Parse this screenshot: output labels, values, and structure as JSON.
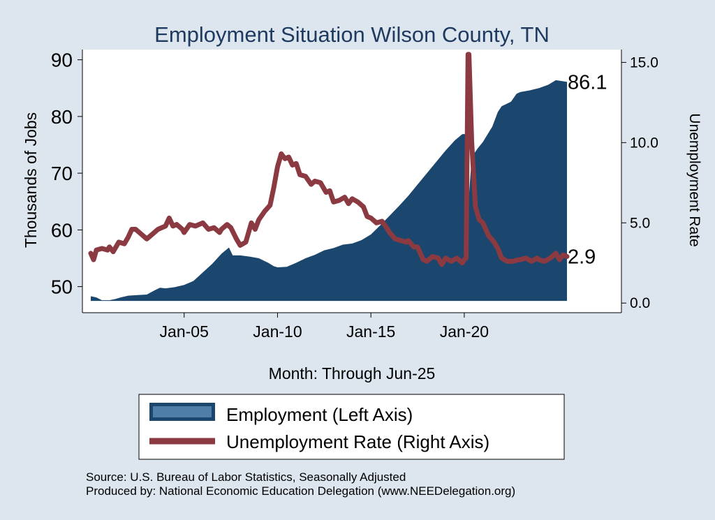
{
  "chart_data": {
    "type": "area+line",
    "title": "Employment Situation Wilson  County, TN",
    "xlabel": "Month: Through Jun-25",
    "ylabel_left": "Thousands of Jobs",
    "ylabel_right": "Unemployment Rate",
    "x_range": [
      2000.0,
      2025.5
    ],
    "y_left_range": [
      45.4,
      91.8
    ],
    "y_right_range": [
      -0.6,
      15.8
    ],
    "x_ticks": [
      {
        "value": 2005,
        "label": "Jan-05"
      },
      {
        "value": 2010,
        "label": "Jan-10"
      },
      {
        "value": 2015,
        "label": "Jan-15"
      },
      {
        "value": 2020,
        "label": "Jan-20"
      }
    ],
    "y_left_ticks": [
      {
        "value": 50,
        "label": "50"
      },
      {
        "value": 60,
        "label": "60"
      },
      {
        "value": 70,
        "label": "70"
      },
      {
        "value": 80,
        "label": "80"
      },
      {
        "value": 90,
        "label": "90"
      }
    ],
    "y_right_ticks": [
      {
        "value": 0,
        "label": "0.0"
      },
      {
        "value": 5,
        "label": "5.0"
      },
      {
        "value": 10,
        "label": "10.0"
      },
      {
        "value": 15,
        "label": "15.0"
      }
    ],
    "series": [
      {
        "name": "Employment (Left Axis)",
        "kind": "area",
        "axis": "left",
        "color": "#1b466d",
        "points": [
          [
            2000.0,
            48.3
          ],
          [
            2000.3,
            48.1
          ],
          [
            2000.6,
            47.6
          ],
          [
            2001.0,
            47.6
          ],
          [
            2001.3,
            47.8
          ],
          [
            2001.6,
            48.1
          ],
          [
            2002.0,
            48.4
          ],
          [
            2002.5,
            48.5
          ],
          [
            2003.0,
            48.6
          ],
          [
            2003.4,
            49.3
          ],
          [
            2003.7,
            49.8
          ],
          [
            2004.0,
            49.7
          ],
          [
            2004.5,
            49.9
          ],
          [
            2005.0,
            50.3
          ],
          [
            2005.5,
            51.0
          ],
          [
            2006.0,
            52.5
          ],
          [
            2006.5,
            54.0
          ],
          [
            2007.0,
            55.8
          ],
          [
            2007.4,
            56.9
          ],
          [
            2007.6,
            55.5
          ],
          [
            2008.0,
            55.5
          ],
          [
            2008.5,
            55.3
          ],
          [
            2009.0,
            55.0
          ],
          [
            2009.5,
            54.2
          ],
          [
            2009.8,
            53.6
          ],
          [
            2010.0,
            53.4
          ],
          [
            2010.5,
            53.5
          ],
          [
            2011.0,
            54.2
          ],
          [
            2011.5,
            55.0
          ],
          [
            2012.0,
            55.6
          ],
          [
            2012.5,
            56.4
          ],
          [
            2013.0,
            56.8
          ],
          [
            2013.5,
            57.4
          ],
          [
            2014.0,
            57.6
          ],
          [
            2014.5,
            58.2
          ],
          [
            2015.0,
            59.2
          ],
          [
            2015.5,
            60.8
          ],
          [
            2016.0,
            62.5
          ],
          [
            2016.5,
            64.2
          ],
          [
            2017.0,
            66.0
          ],
          [
            2017.5,
            68.0
          ],
          [
            2018.0,
            70.0
          ],
          [
            2018.5,
            72.0
          ],
          [
            2019.0,
            74.0
          ],
          [
            2019.5,
            75.8
          ],
          [
            2019.9,
            76.9
          ],
          [
            2020.1,
            76.9
          ],
          [
            2020.25,
            66.0
          ],
          [
            2020.4,
            72.8
          ],
          [
            2020.7,
            74.3
          ],
          [
            2021.0,
            75.5
          ],
          [
            2021.5,
            78.2
          ],
          [
            2021.8,
            80.8
          ],
          [
            2022.0,
            81.8
          ],
          [
            2022.5,
            82.6
          ],
          [
            2022.8,
            84.0
          ],
          [
            2023.0,
            84.3
          ],
          [
            2023.5,
            84.6
          ],
          [
            2024.0,
            85.0
          ],
          [
            2024.5,
            85.6
          ],
          [
            2024.9,
            86.4
          ],
          [
            2025.5,
            86.1
          ]
        ]
      },
      {
        "name": "Unemployment Rate (Right Axis)",
        "kind": "line",
        "axis": "right",
        "color": "#8b3a42",
        "points": [
          [
            2000.0,
            3.1
          ],
          [
            2000.15,
            2.7
          ],
          [
            2000.3,
            3.3
          ],
          [
            2000.6,
            3.4
          ],
          [
            2000.9,
            3.3
          ],
          [
            2001.0,
            3.5
          ],
          [
            2001.2,
            3.2
          ],
          [
            2001.5,
            3.8
          ],
          [
            2001.8,
            3.7
          ],
          [
            2002.0,
            4.1
          ],
          [
            2002.2,
            4.6
          ],
          [
            2002.4,
            4.6
          ],
          [
            2002.7,
            4.3
          ],
          [
            2003.0,
            4.0
          ],
          [
            2003.3,
            4.3
          ],
          [
            2003.6,
            4.6
          ],
          [
            2004.0,
            4.8
          ],
          [
            2004.2,
            5.3
          ],
          [
            2004.4,
            4.8
          ],
          [
            2004.6,
            4.9
          ],
          [
            2004.9,
            4.6
          ],
          [
            2005.0,
            4.4
          ],
          [
            2005.3,
            4.9
          ],
          [
            2005.6,
            4.8
          ],
          [
            2006.0,
            5.0
          ],
          [
            2006.3,
            4.6
          ],
          [
            2006.6,
            4.7
          ],
          [
            2006.9,
            4.4
          ],
          [
            2007.0,
            4.6
          ],
          [
            2007.3,
            4.9
          ],
          [
            2007.5,
            4.7
          ],
          [
            2007.8,
            4.0
          ],
          [
            2008.0,
            3.6
          ],
          [
            2008.3,
            3.8
          ],
          [
            2008.6,
            5.0
          ],
          [
            2008.8,
            4.6
          ],
          [
            2009.0,
            5.2
          ],
          [
            2009.3,
            5.7
          ],
          [
            2009.6,
            6.1
          ],
          [
            2009.8,
            7.2
          ],
          [
            2010.0,
            8.5
          ],
          [
            2010.2,
            9.3
          ],
          [
            2010.4,
            9.0
          ],
          [
            2010.6,
            9.1
          ],
          [
            2010.8,
            8.6
          ],
          [
            2011.0,
            8.7
          ],
          [
            2011.2,
            8.0
          ],
          [
            2011.5,
            7.9
          ],
          [
            2011.8,
            7.4
          ],
          [
            2012.0,
            7.6
          ],
          [
            2012.3,
            7.5
          ],
          [
            2012.6,
            6.9
          ],
          [
            2012.8,
            7.0
          ],
          [
            2013.0,
            6.3
          ],
          [
            2013.3,
            6.4
          ],
          [
            2013.6,
            6.6
          ],
          [
            2013.8,
            6.2
          ],
          [
            2014.0,
            6.5
          ],
          [
            2014.3,
            6.3
          ],
          [
            2014.6,
            6.0
          ],
          [
            2014.8,
            5.4
          ],
          [
            2015.0,
            5.3
          ],
          [
            2015.3,
            5.0
          ],
          [
            2015.6,
            5.1
          ],
          [
            2015.9,
            4.6
          ],
          [
            2016.0,
            4.4
          ],
          [
            2016.3,
            4.0
          ],
          [
            2016.6,
            3.9
          ],
          [
            2016.9,
            3.8
          ],
          [
            2017.0,
            3.9
          ],
          [
            2017.3,
            3.5
          ],
          [
            2017.5,
            3.5
          ],
          [
            2017.8,
            2.7
          ],
          [
            2018.0,
            2.6
          ],
          [
            2018.3,
            2.9
          ],
          [
            2018.6,
            2.8
          ],
          [
            2018.8,
            2.4
          ],
          [
            2019.0,
            2.8
          ],
          [
            2019.3,
            2.6
          ],
          [
            2019.6,
            2.8
          ],
          [
            2019.9,
            2.5
          ],
          [
            2020.0,
            2.7
          ],
          [
            2020.1,
            2.8
          ],
          [
            2020.2,
            15.5
          ],
          [
            2020.25,
            15.5
          ],
          [
            2020.4,
            10.0
          ],
          [
            2020.6,
            6.0
          ],
          [
            2020.8,
            5.2
          ],
          [
            2021.0,
            5.0
          ],
          [
            2021.3,
            4.2
          ],
          [
            2021.6,
            3.8
          ],
          [
            2021.8,
            3.4
          ],
          [
            2022.0,
            2.8
          ],
          [
            2022.3,
            2.6
          ],
          [
            2022.6,
            2.6
          ],
          [
            2022.9,
            2.7
          ],
          [
            2023.0,
            2.7
          ],
          [
            2023.3,
            2.8
          ],
          [
            2023.6,
            2.6
          ],
          [
            2023.9,
            2.8
          ],
          [
            2024.0,
            2.7
          ],
          [
            2024.3,
            2.6
          ],
          [
            2024.6,
            2.8
          ],
          [
            2024.9,
            3.1
          ],
          [
            2025.1,
            2.7
          ],
          [
            2025.3,
            3.0
          ],
          [
            2025.5,
            2.9
          ]
        ]
      }
    ],
    "end_labels": [
      {
        "series": "Employment (Left Axis)",
        "text": "86.1",
        "value": 86.1,
        "axis": "left"
      },
      {
        "series": "Unemployment Rate (Right Axis)",
        "text": "2.9",
        "value": 2.9,
        "axis": "right"
      }
    ],
    "legend": {
      "position": "bottom",
      "items": [
        "Employment (Left Axis)",
        "Unemployment Rate (Right Axis)"
      ]
    },
    "notes": [
      "Source: U.S. Bureau of Labor Statistics, Seasonally Adjusted",
      "Produced by: National Economic Education Delegation (www.NEEDelegation.org)"
    ],
    "colors": {
      "background": "#dde6ee",
      "plot_background": "#ffffff",
      "employment": "#1b466d",
      "unemployment": "#8b3a42",
      "title": "#1e3a5f",
      "legend_swatch_inner": "#4f7fa8"
    }
  }
}
